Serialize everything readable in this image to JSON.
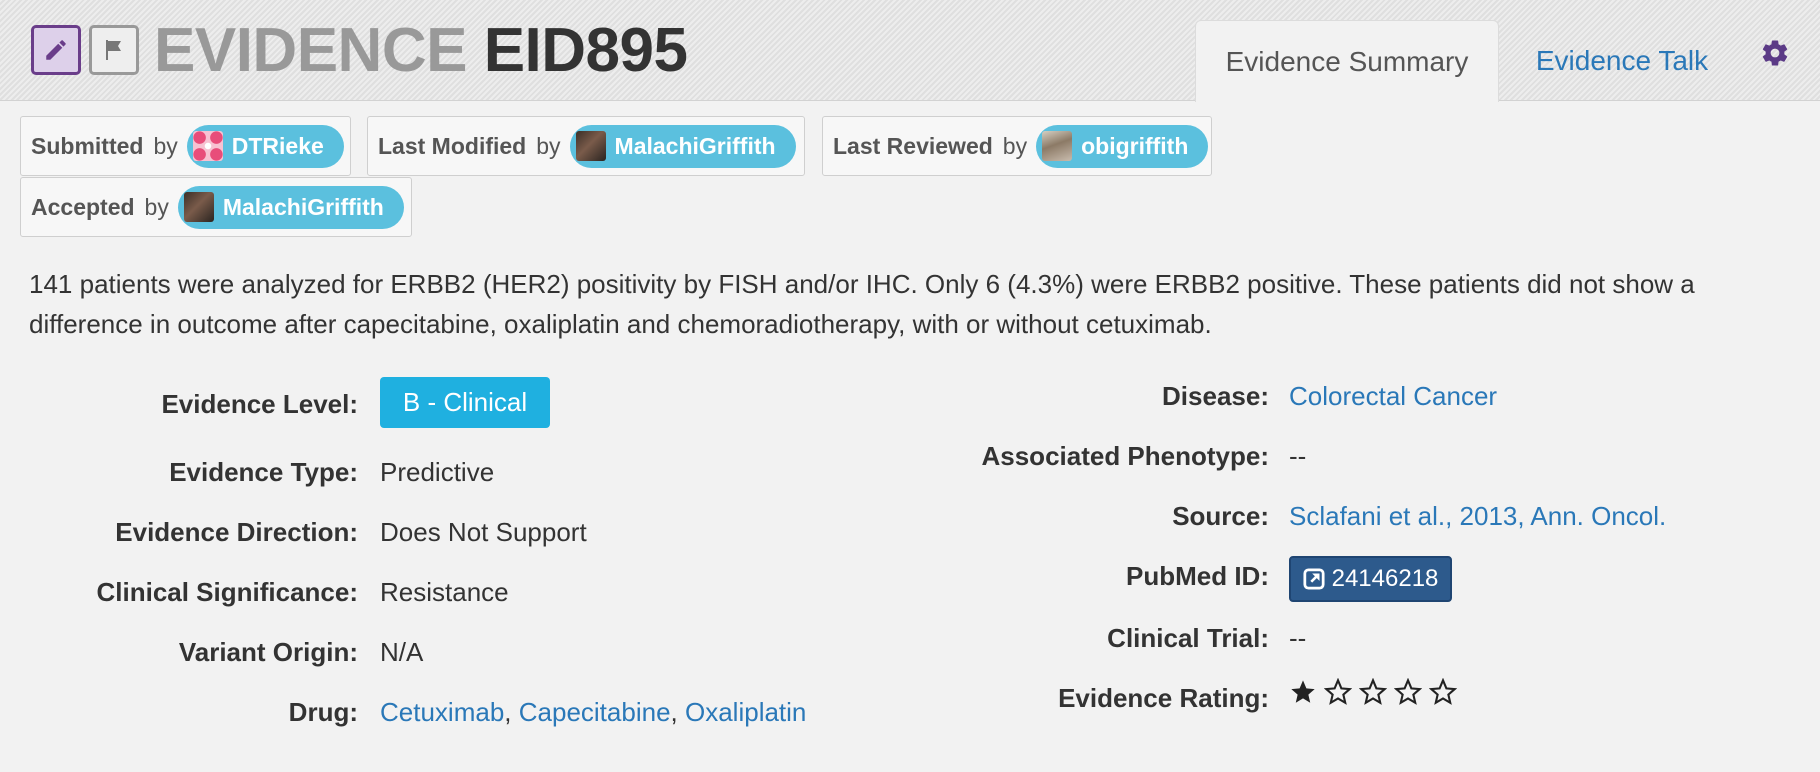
{
  "header": {
    "eyebrow": "EVIDENCE",
    "evidence_id": "EID895",
    "edit_icon": "pencil-icon",
    "flag_icon": "flag-icon",
    "settings_icon": "gear-icon"
  },
  "tabs": [
    {
      "label": "Evidence Summary",
      "active": true
    },
    {
      "label": "Evidence Talk",
      "active": false
    }
  ],
  "attributions": [
    {
      "action": "Submitted",
      "by": "by",
      "user": "DTRieke"
    },
    {
      "action": "Last Modified",
      "by": "by",
      "user": "MalachiGriffith"
    },
    {
      "action": "Last Reviewed",
      "by": "by",
      "user": "obigriffith"
    },
    {
      "action": "Accepted",
      "by": "by",
      "user": "MalachiGriffith"
    }
  ],
  "description": "141 patients were analyzed for ERBB2 (HER2) positivity by FISH and/or IHC. Only 6 (4.3%) were ERBB2 positive. These patients did not show a difference in outcome after capecitabine, oxaliplatin and chemoradiotherapy, with or without cetuximab.",
  "left_fields": {
    "evidence_level": {
      "label": "Evidence Level:",
      "value": "B - Clinical"
    },
    "evidence_type": {
      "label": "Evidence Type:",
      "value": "Predictive"
    },
    "evidence_direction": {
      "label": "Evidence Direction:",
      "value": "Does Not Support"
    },
    "clinical_significance": {
      "label": "Clinical Significance:",
      "value": "Resistance"
    },
    "variant_origin": {
      "label": "Variant Origin:",
      "value": "N/A"
    },
    "drug": {
      "label": "Drug:",
      "drugs": [
        "Cetuximab",
        "Capecitabine",
        "Oxaliplatin"
      ],
      "separator": ","
    }
  },
  "right_fields": {
    "disease": {
      "label": "Disease:",
      "value": "Colorectal Cancer"
    },
    "associated_phenotype": {
      "label": "Associated Phenotype:",
      "value": "--"
    },
    "source": {
      "label": "Source:",
      "value": "Sclafani et al., 2013, Ann. Oncol."
    },
    "pubmed_id": {
      "label": "PubMed ID:",
      "value": "24146218",
      "icon": "external-link-icon"
    },
    "clinical_trial": {
      "label": "Clinical Trial:",
      "value": "--"
    },
    "evidence_rating": {
      "label": "Evidence Rating:",
      "rating": 1,
      "max": 5,
      "icon": "star-icon"
    }
  },
  "colors": {
    "link": "#2a78b8",
    "user_chip": "#5bc0de",
    "level_badge": "#1fb0e0",
    "pubmed_button": "#2d5a8c",
    "edit_accent": "#6a3d8a"
  }
}
